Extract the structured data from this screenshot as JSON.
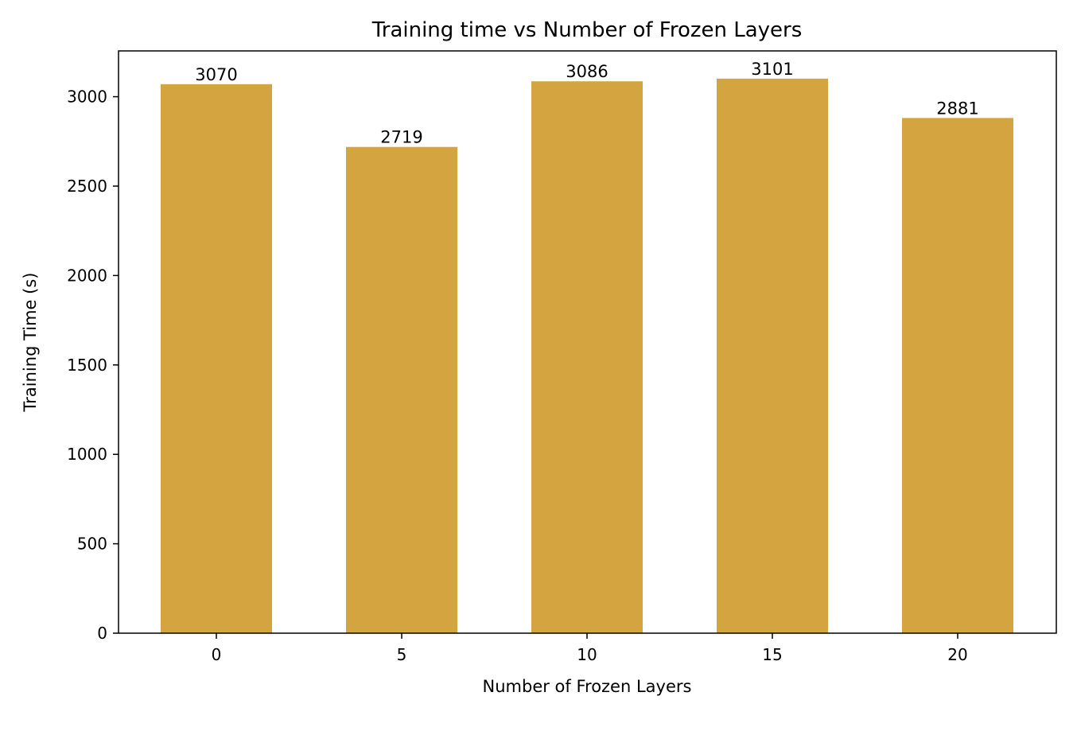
{
  "chart_data": {
    "type": "bar",
    "title": "Training time vs Number of Frozen Layers",
    "xlabel": "Number of Frozen Layers",
    "ylabel": "Training Time (s)",
    "categories": [
      "0",
      "5",
      "10",
      "15",
      "20"
    ],
    "values": [
      3070,
      2719,
      3086,
      3101,
      2881
    ],
    "data_labels": [
      "3070",
      "2719",
      "3086",
      "3101",
      "2881"
    ],
    "y_ticks": [
      0,
      500,
      1000,
      1500,
      2000,
      2500,
      3000
    ],
    "ylim": [
      0,
      3256
    ],
    "grid": false,
    "legend": "none",
    "bar_color": "#d4a441"
  }
}
